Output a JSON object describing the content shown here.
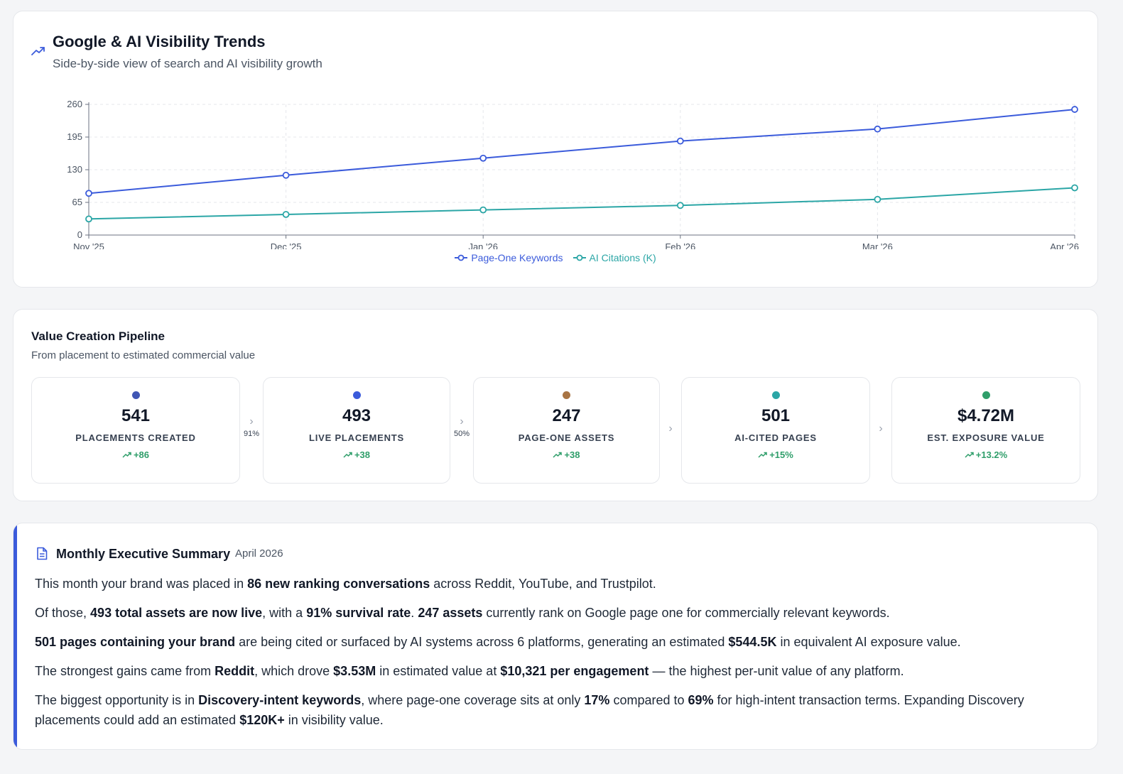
{
  "trends": {
    "title": "Google & AI Visibility Trends",
    "subtitle": "Side-by-side view of search and AI visibility growth",
    "icon": "trending-up-icon"
  },
  "chart_data": {
    "type": "line",
    "title": "Google & AI Visibility Trends",
    "x": [
      "Nov '25",
      "Dec '25",
      "Jan '26",
      "Feb '26",
      "Mar '26",
      "Apr '26"
    ],
    "yticks": [
      "0",
      "65",
      "130",
      "195",
      "260"
    ],
    "ylim": [
      0,
      260
    ],
    "grid": true,
    "legend_position": "bottom",
    "series": [
      {
        "name": "Page-One Keywords",
        "color": "#3b5bdb",
        "values": [
          83,
          119,
          153,
          187,
          211,
          250
        ]
      },
      {
        "name": "AI Citations (K)",
        "color": "#2ba6a6",
        "values": [
          32,
          41,
          50,
          59,
          71,
          94
        ]
      }
    ]
  },
  "pipeline": {
    "title": "Value Creation Pipeline",
    "subtitle": "From placement to estimated commercial value",
    "stages": [
      {
        "value": "541",
        "label": "PLACEMENTS CREATED",
        "change": "+86",
        "color": "#4056b4"
      },
      {
        "value": "493",
        "label": "LIVE PLACEMENTS",
        "change": "+38",
        "color": "#3b5bdb"
      },
      {
        "value": "247",
        "label": "PAGE-ONE ASSETS",
        "change": "+38",
        "color": "#a87444"
      },
      {
        "value": "501",
        "label": "AI-CITED PAGES",
        "change": "+15%",
        "color": "#2ba6a6"
      },
      {
        "value": "$4.72M",
        "label": "EST. EXPOSURE VALUE",
        "change": "+13.2%",
        "color": "#2f9e6a"
      }
    ],
    "connectors": [
      {
        "pct": "91%"
      },
      {
        "pct": "50%"
      },
      {
        "pct": ""
      },
      {
        "pct": ""
      }
    ]
  },
  "summary": {
    "title": "Monthly Executive Summary",
    "date": "April 2026",
    "icon": "document-icon",
    "p1": {
      "a": "This month your brand was placed in ",
      "b1": "86 new ranking conversations",
      "c": " across Reddit, YouTube, and Trustpilot."
    },
    "p2": {
      "a": "Of those, ",
      "b1": "493 total assets are now live",
      "c": ", with a ",
      "b2": "91% survival rate",
      "d": ". ",
      "b3": "247 assets",
      "e": " currently rank on Google page one for commercially relevant keywords."
    },
    "p3": {
      "b1": "501 pages containing your brand",
      "a": " are being cited or surfaced by AI systems across 6 platforms, generating an estimated ",
      "b2": "$544.5K",
      "c": " in equivalent AI exposure value."
    },
    "p4": {
      "a": "The strongest gains came from ",
      "b1": "Reddit",
      "c": ", which drove ",
      "b2": "$3.53M",
      "d": " in estimated value at ",
      "b3": "$10,321 per engagement",
      "e": " — the highest per-unit value of any platform."
    },
    "p5": {
      "a": "The biggest opportunity is in ",
      "b1": "Discovery-intent keywords",
      "c": ", where page-one coverage sits at only ",
      "b2": "17%",
      "d": " compared to ",
      "b3": "69%",
      "e": " for high-intent transaction terms. Expanding Discovery placements could add an estimated ",
      "b4": "$120K+",
      "f": " in visibility value."
    }
  }
}
